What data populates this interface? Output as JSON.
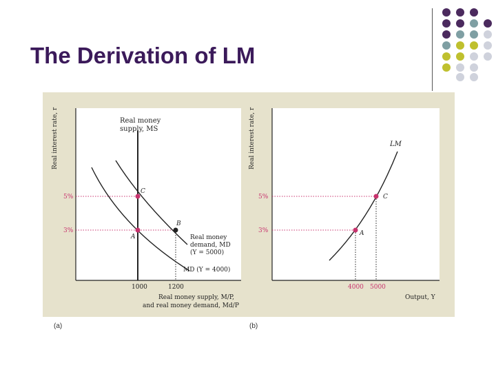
{
  "slide": {
    "title": "The Derivation of LM"
  },
  "theme": {
    "title_color": "#3b1a5a",
    "accent_purple": "#4b2a5e",
    "accent_teal": "#7f9fa3",
    "accent_olive": "#bfc02e",
    "accent_gray": "#cfd2dc"
  },
  "figure": {
    "panel_a": {
      "sublabel": "(a)",
      "y_axis_label": "Real interest rate, r",
      "ms_label_1": "Real money",
      "ms_label_2": "supply, MS",
      "md_label_1": "Real money",
      "md_label_2": "demand, MD",
      "md_label_3": "(Y = 5000)",
      "md4000_label": "MD (Y = 4000)",
      "x_axis_label_1": "Real money supply, M/P,",
      "x_axis_label_2": "and real money demand, Md/P",
      "tick_1000": "1000",
      "tick_1200": "1200",
      "rate_5": "5%",
      "rate_3": "3%",
      "point_c": "C",
      "point_a": "A",
      "point_b": "B"
    },
    "panel_b": {
      "sublabel": "(b)",
      "y_axis_label": "Real interest rate, r",
      "lm_label": "LM",
      "x_axis_label": "Output, Y",
      "tick_4000": "4000",
      "tick_5000": "5000",
      "rate_5": "5%",
      "rate_3": "3%",
      "point_c": "C",
      "point_a": "A"
    }
  },
  "chart_data": {
    "type": "line",
    "title": "The Derivation of LM",
    "panels": [
      {
        "id": "a",
        "xlabel": "Real money supply, M/P, and real money demand, Md/P",
        "ylabel": "Real interest rate, r",
        "x_ticks": [
          1000,
          1200
        ],
        "y_ticks": [
          "5%",
          "3%"
        ],
        "series": [
          {
            "name": "Real money supply, MS",
            "kind": "vertical",
            "x": 1000
          },
          {
            "name": "MD (Y = 4000)",
            "kind": "downward-curve"
          },
          {
            "name": "Real money demand, MD (Y = 5000)",
            "kind": "downward-curve"
          }
        ],
        "points": [
          {
            "label": "C",
            "x": 1000,
            "r": 5
          },
          {
            "label": "A",
            "x": 1000,
            "r": 3
          },
          {
            "label": "B",
            "x": 1200,
            "r": 3
          }
        ]
      },
      {
        "id": "b",
        "xlabel": "Output, Y",
        "ylabel": "Real interest rate, r",
        "x_ticks": [
          4000,
          5000
        ],
        "y_ticks": [
          "5%",
          "3%"
        ],
        "series": [
          {
            "name": "LM",
            "kind": "upward-curve"
          }
        ],
        "points": [
          {
            "label": "A",
            "Y": 4000,
            "r": 3
          },
          {
            "label": "C",
            "Y": 5000,
            "r": 5
          }
        ]
      }
    ]
  }
}
